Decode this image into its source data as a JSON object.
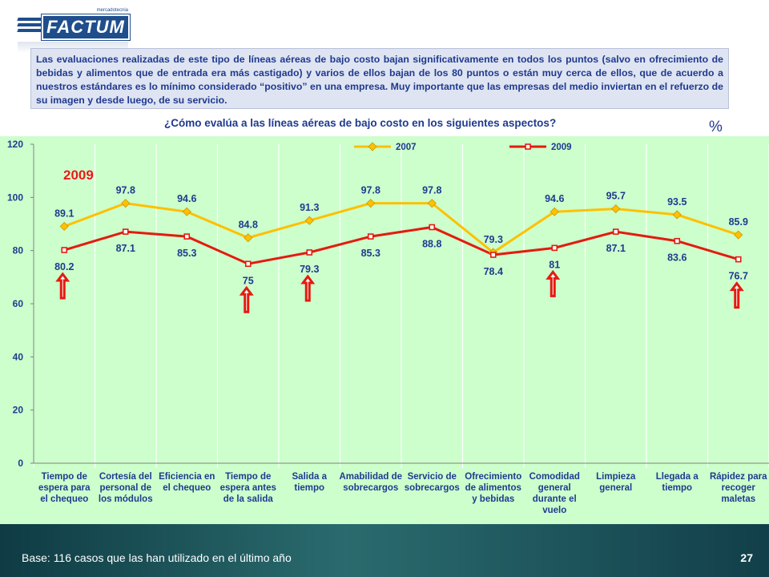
{
  "brand": {
    "name": "FACTUM",
    "tagline": "mercadotecnia"
  },
  "summary_text": "Las evaluaciones realizadas de este tipo de líneas aéreas de bajo costo bajan significativamente en todos los puntos (salvo en ofrecimiento de bebidas y alimentos que de entrada era más castigado) y varios de ellos bajan de los 80 puntos o están muy cerca de ellos, que de acuerdo a nuestros estándares es lo mínimo considerado “positivo” en una empresa. Muy importante que las empresas del medio inviertan en el refuerzo de su imagen y desde luego, de su servicio.",
  "footer": {
    "base": "Base: 116 casos que las han utilizado en el último año",
    "page": "27"
  },
  "colors": {
    "series_2007": "#ffc000",
    "series_2009": "#e31b0f",
    "axis_text": "#1f3a8f",
    "chart_bg": "#ccffcc",
    "arrow": "#e31b0f"
  },
  "chart_data": {
    "type": "line",
    "title": "¿Cómo evalúa a las líneas aéreas de bajo costo en los siguientes aspectos?",
    "unit_label": "%",
    "callout": "2009",
    "categories": [
      "Tiempo de espera para el chequeo",
      "Cortesía del personal de los módulos",
      "Eficiencia en el chequeo",
      "Tiempo de espera antes de la salida",
      "Salida a tiempo",
      "Amabilidad de sobrecargos",
      "Servicio de sobrecargos",
      "Ofrecimiento de alimentos y bebidas",
      "Comodidad general durante el vuelo",
      "Limpieza general",
      "Llegada a tiempo",
      "Rápidez para recoger maletas"
    ],
    "series": [
      {
        "name": "2007",
        "values": [
          89.1,
          97.8,
          94.6,
          84.8,
          91.3,
          97.8,
          97.8,
          79.3,
          94.6,
          95.7,
          93.5,
          85.9
        ]
      },
      {
        "name": "2009",
        "values": [
          80.2,
          87.1,
          85.3,
          75,
          79.3,
          85.3,
          88.8,
          78.4,
          81,
          87.1,
          83.6,
          76.7
        ]
      }
    ],
    "ylim": [
      0,
      120
    ],
    "yticks": [
      0,
      20,
      40,
      60,
      80,
      100,
      120
    ],
    "grid": "vertical",
    "legend": "top-center",
    "arrow_categories": [
      0,
      3,
      4,
      8,
      11
    ]
  }
}
